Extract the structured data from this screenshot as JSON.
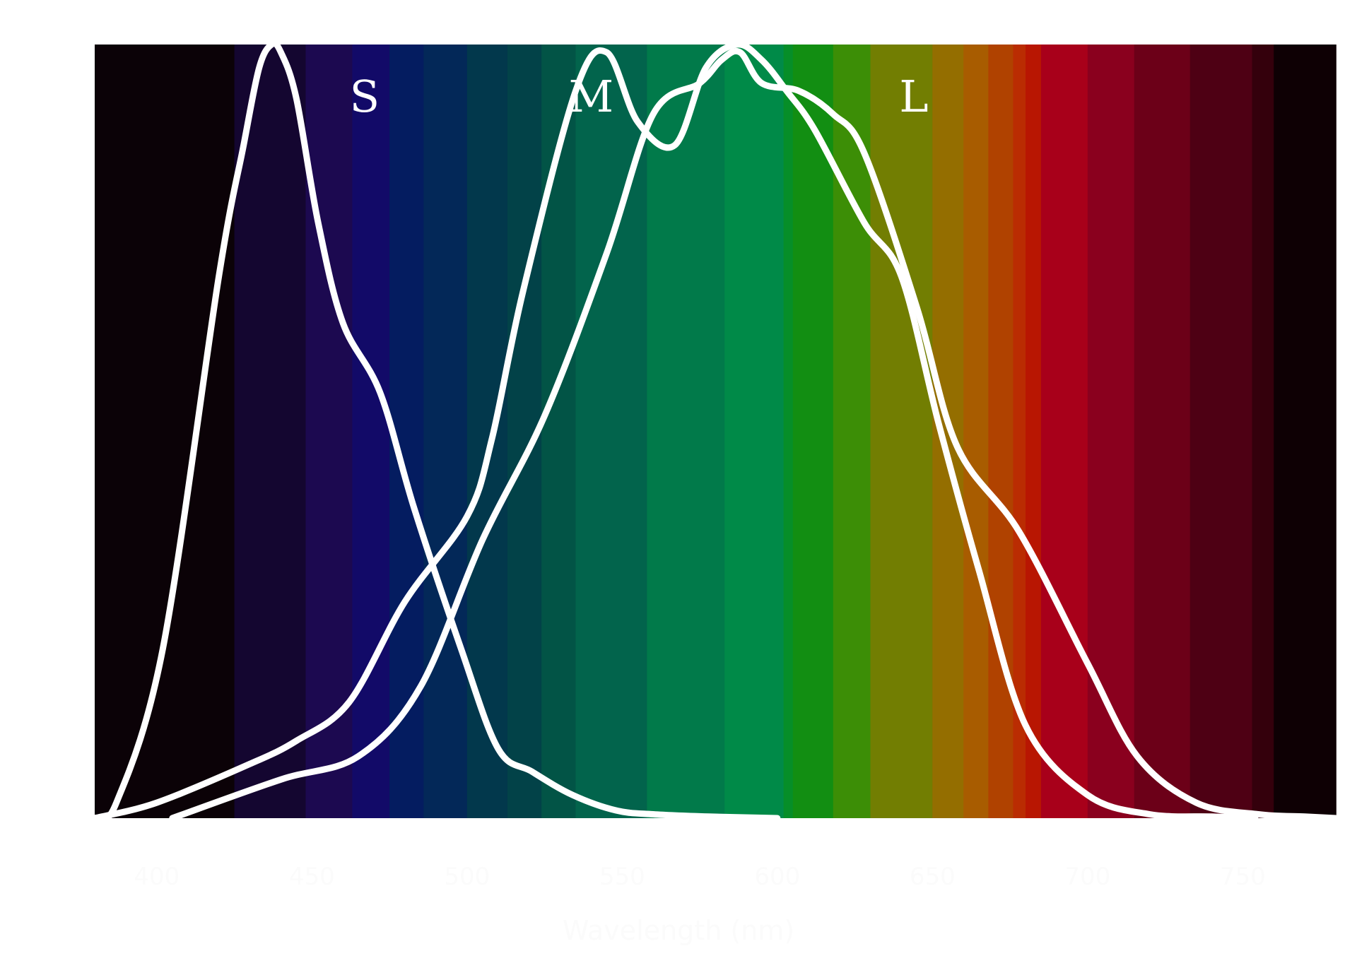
{
  "chart_data": {
    "type": "line",
    "title": "",
    "xlabel": "Wavelength (nm)",
    "ylabel": "",
    "xlim": [
      380,
      780
    ],
    "ylim": [
      0,
      1.0
    ],
    "x_ticks": [
      400,
      450,
      500,
      550,
      600,
      650,
      700,
      750
    ],
    "grid": false,
    "legend": "none",
    "background": "visible-spectrum bands",
    "spectrum_bands": [
      {
        "from": 380,
        "to": 425,
        "color": "#0b0207"
      },
      {
        "from": 425,
        "to": 448,
        "color": "#140630"
      },
      {
        "from": 448,
        "to": 463,
        "color": "#1c0950"
      },
      {
        "from": 463,
        "to": 475,
        "color": "#120a68"
      },
      {
        "from": 475,
        "to": 486,
        "color": "#041c60"
      },
      {
        "from": 486,
        "to": 500,
        "color": "#032858"
      },
      {
        "from": 500,
        "to": 513,
        "color": "#02384c"
      },
      {
        "from": 513,
        "to": 524,
        "color": "#024248"
      },
      {
        "from": 524,
        "to": 535,
        "color": "#025446"
      },
      {
        "from": 535,
        "to": 558,
        "color": "#02644c"
      },
      {
        "from": 558,
        "to": 583,
        "color": "#017a4a"
      },
      {
        "from": 583,
        "to": 602,
        "color": "#008a48"
      },
      {
        "from": 602,
        "to": 605,
        "color": "#068e28"
      },
      {
        "from": 605,
        "to": 618,
        "color": "#128e12"
      },
      {
        "from": 618,
        "to": 630,
        "color": "#3c8e06"
      },
      {
        "from": 630,
        "to": 650,
        "color": "#727e02"
      },
      {
        "from": 650,
        "to": 660,
        "color": "#946e00"
      },
      {
        "from": 660,
        "to": 668,
        "color": "#a85c00"
      },
      {
        "from": 668,
        "to": 676,
        "color": "#b04200"
      },
      {
        "from": 676,
        "to": 680,
        "color": "#ba2c02"
      },
      {
        "from": 680,
        "to": 685,
        "color": "#b81602"
      },
      {
        "from": 685,
        "to": 700,
        "color": "#a8001a"
      },
      {
        "from": 700,
        "to": 715,
        "color": "#8a001e"
      },
      {
        "from": 715,
        "to": 733,
        "color": "#6c0018"
      },
      {
        "from": 733,
        "to": 753,
        "color": "#4e0014"
      },
      {
        "from": 753,
        "to": 760,
        "color": "#34000c"
      },
      {
        "from": 760,
        "to": 780,
        "color": "#0e0004"
      }
    ],
    "series": [
      {
        "name": "S",
        "color": "#ffffff",
        "x": [
          380,
          387,
          402,
          420,
          428,
          433,
          437,
          440,
          445,
          452,
          460,
          472,
          483,
          498,
          510,
          521,
          534,
          548,
          560,
          578,
          600
        ],
        "y": [
          0.0,
          0.02,
          0.22,
          0.7,
          0.87,
          0.97,
          1.0,
          0.99,
          0.93,
          0.77,
          0.64,
          0.55,
          0.4,
          0.22,
          0.09,
          0.06,
          0.03,
          0.01,
          0.005,
          0.002,
          0.0
        ]
      },
      {
        "name": "M",
        "color": "#ffffff",
        "x": [
          380,
          400,
          430,
          445,
          462,
          480,
          500,
          508,
          518,
          535,
          545,
          555,
          567,
          577,
          587,
          595,
          603,
          612,
          628,
          640,
          652,
          665,
          680,
          700,
          720,
          740,
          754
        ],
        "y": [
          0.0,
          0.02,
          0.07,
          0.1,
          0.15,
          0.28,
          0.39,
          0.49,
          0.68,
          0.94,
          0.99,
          0.9,
          0.87,
          0.97,
          1.0,
          0.98,
          0.94,
          0.89,
          0.77,
          0.7,
          0.51,
          0.32,
          0.12,
          0.03,
          0.005,
          0.002,
          0.0
        ]
      },
      {
        "name": "L",
        "color": "#ffffff",
        "x": [
          405,
          440,
          465,
          485,
          505,
          525,
          545,
          560,
          575,
          582,
          588,
          595,
          607,
          618,
          628,
          645,
          658,
          678,
          700,
          716,
          735,
          755,
          770,
          780
        ],
        "y": [
          0.0,
          0.05,
          0.08,
          0.17,
          0.36,
          0.52,
          0.73,
          0.91,
          0.95,
          0.98,
          0.99,
          0.95,
          0.94,
          0.91,
          0.86,
          0.66,
          0.48,
          0.37,
          0.2,
          0.08,
          0.02,
          0.005,
          0.002,
          0.0
        ]
      }
    ],
    "annotations": [
      {
        "text": "S",
        "x": 467,
        "y": 0.95
      },
      {
        "text": "M",
        "x": 540,
        "y": 0.95
      },
      {
        "text": "L",
        "x": 644,
        "y": 0.95
      }
    ]
  }
}
